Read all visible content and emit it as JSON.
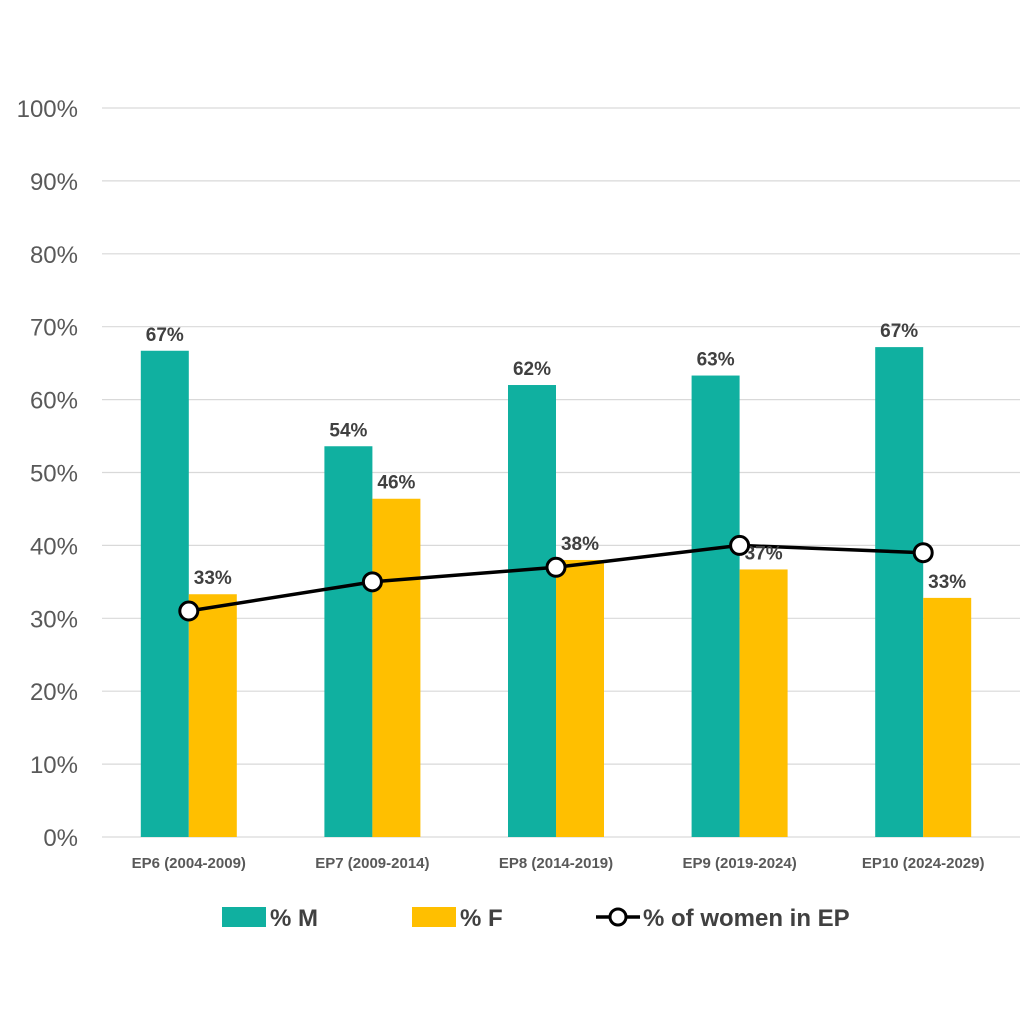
{
  "chart_data": {
    "type": "bar",
    "title": "",
    "xlabel": "",
    "ylabel": "",
    "categories": [
      "EP6 (2004-2009)",
      "EP7 (2009-2014)",
      "EP8 (2014-2019)",
      "EP9 (2019-2024)",
      "EP10 (2024-2029)"
    ],
    "ylim": [
      0,
      100
    ],
    "yticks": [
      "0%",
      "10%",
      "20%",
      "30%",
      "40%",
      "50%",
      "60%",
      "70%",
      "80%",
      "90%",
      "100%"
    ],
    "grid": true,
    "legend_position": "bottom",
    "series": [
      {
        "name": "% M",
        "kind": "bar",
        "color": "#10b0a0",
        "values": [
          66.7,
          53.6,
          62.0,
          63.3,
          67.2
        ],
        "labels": [
          "67%",
          "54%",
          "62%",
          "63%",
          "67%"
        ]
      },
      {
        "name": "% F",
        "kind": "bar",
        "color": "#ffbf00",
        "values": [
          33.3,
          46.4,
          38.0,
          36.7,
          32.8
        ],
        "labels": [
          "33%",
          "46%",
          "38%",
          "37%",
          "33%"
        ]
      },
      {
        "name": "% of women in EP",
        "kind": "line",
        "color": "#000000",
        "values": [
          31,
          35,
          37,
          40,
          39
        ]
      }
    ]
  }
}
